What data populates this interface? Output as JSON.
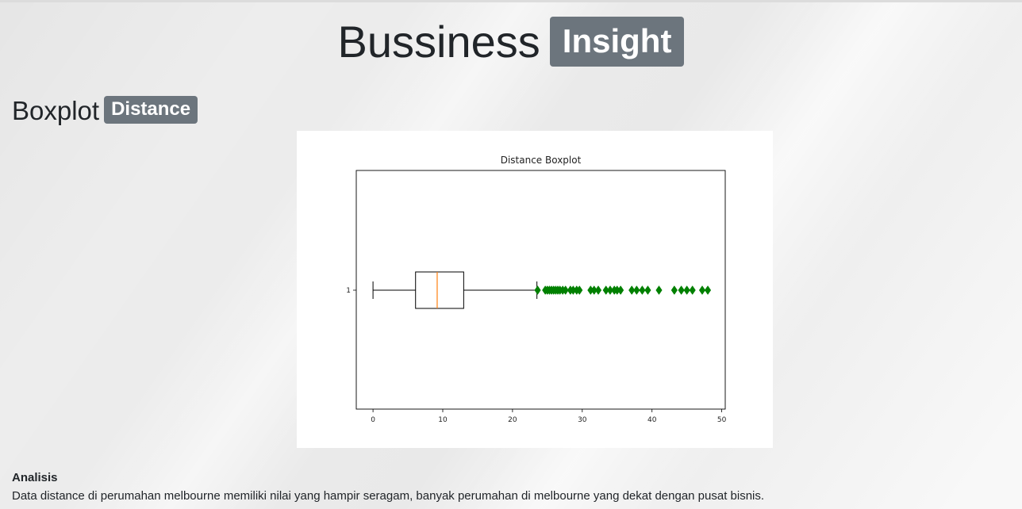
{
  "header": {
    "title": "Bussiness",
    "badge": "Insight"
  },
  "section": {
    "title": "Boxplot",
    "badge": "Distance"
  },
  "chart_data": {
    "type": "boxplot",
    "title": "Distance Boxplot",
    "xlabel": "",
    "ylabel": "",
    "orientation": "horizontal",
    "xlim": [
      -2.4,
      50.5
    ],
    "xticks": [
      0,
      10,
      20,
      30,
      40,
      50
    ],
    "ytick_label": "1",
    "box": {
      "whisker_low": 0,
      "q1": 6.1,
      "median": 9.2,
      "q3": 13.0,
      "whisker_high": 23.5
    },
    "outliers": [
      23.6,
      24.7,
      25.0,
      25.3,
      25.6,
      25.9,
      26.2,
      26.5,
      26.8,
      27.2,
      27.6,
      28.3,
      28.7,
      29.2,
      29.6,
      31.2,
      31.7,
      32.3,
      33.4,
      34.0,
      34.6,
      35.0,
      35.5,
      37.1,
      37.8,
      38.6,
      39.4,
      41.0,
      43.2,
      44.2,
      45.0,
      45.8,
      47.2,
      48.0
    ],
    "colors": {
      "median": "#ff7f0e",
      "outlier": "#008000",
      "box": "#000000"
    }
  },
  "analysis": {
    "label": "Analisis",
    "text": "Data distance di perumahan melbourne memiliki nilai yang hampir seragam, banyak perumahan di melbourne yang dekat dengan pusat bisnis."
  }
}
